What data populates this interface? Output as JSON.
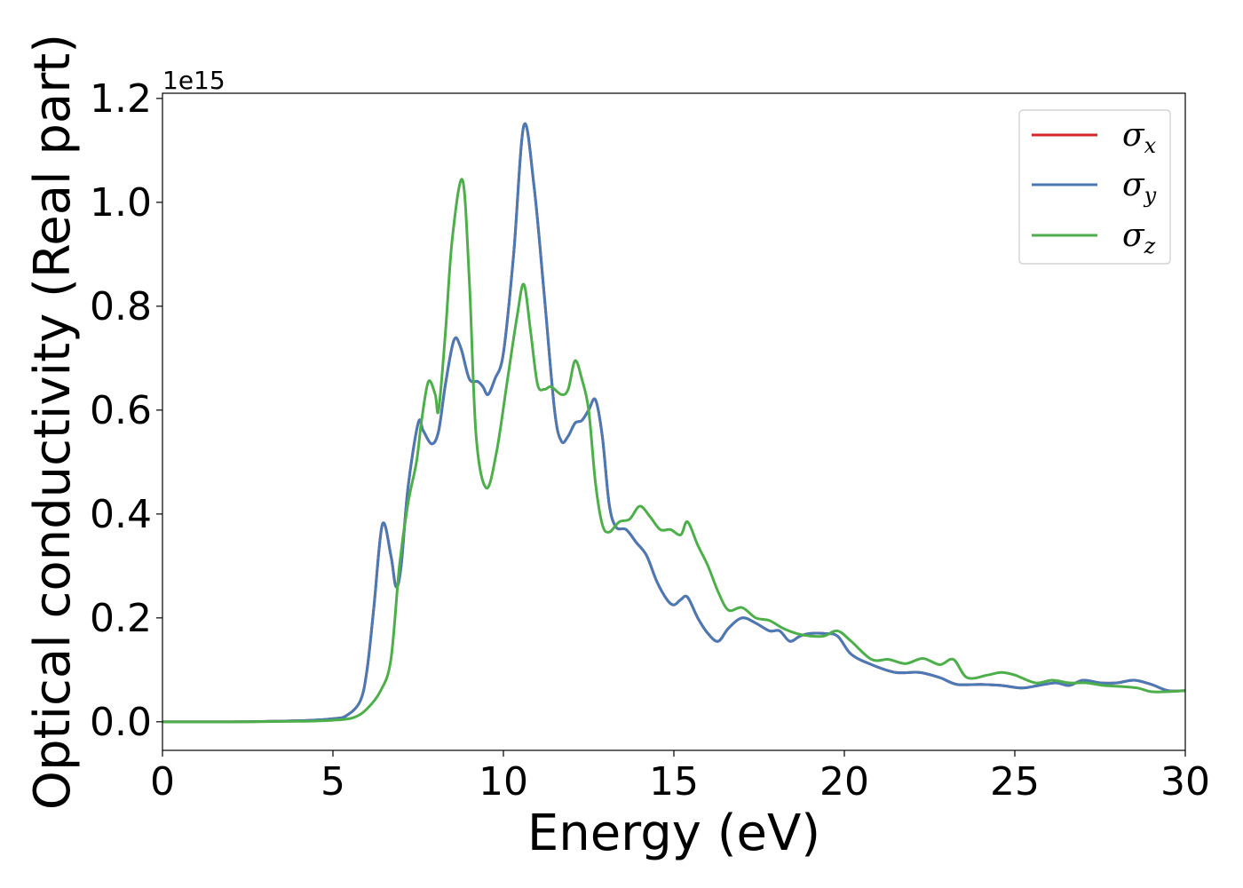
{
  "chart_data": {
    "type": "line",
    "xlabel": "Energy (eV)",
    "ylabel": "Optical conductivity (Real part)",
    "y_offset_label": "1e15",
    "xlim": [
      0,
      30
    ],
    "ylim": [
      -0.055,
      1.21
    ],
    "x_ticks": [
      0,
      5,
      10,
      15,
      20,
      25,
      30
    ],
    "y_ticks": [
      0.0,
      0.2,
      0.4,
      0.6,
      0.8,
      1.0,
      1.2
    ],
    "x_tick_labels": [
      "0",
      "5",
      "10",
      "15",
      "20",
      "25",
      "30"
    ],
    "y_tick_labels": [
      "0.0",
      "0.2",
      "0.4",
      "0.6",
      "0.8",
      "1.0",
      "1.2"
    ],
    "grid": false,
    "legend_position": "top-right",
    "series": [
      {
        "name": "σx",
        "symbol": "σ",
        "subscript": "x",
        "color": "#d62728",
        "x": [
          0,
          2,
          4,
          5,
          5.4,
          5.8,
          6.0,
          6.2,
          6.45,
          6.7,
          6.85,
          7.0,
          7.2,
          7.5,
          7.65,
          7.9,
          8.1,
          8.3,
          8.55,
          8.75,
          9.0,
          9.25,
          9.4,
          9.55,
          9.75,
          10.0,
          10.3,
          10.6,
          10.9,
          11.2,
          11.5,
          11.7,
          11.9,
          12.1,
          12.3,
          12.5,
          12.7,
          12.9,
          13.1,
          13.3,
          13.6,
          13.9,
          14.2,
          14.5,
          14.8,
          15.0,
          15.2,
          15.4,
          15.7,
          16.0,
          16.3,
          16.6,
          17.0,
          17.4,
          17.8,
          18.1,
          18.4,
          18.7,
          19.0,
          19.4,
          19.8,
          20.2,
          20.8,
          21.5,
          22.2,
          22.8,
          23.3,
          24.0,
          24.6,
          25.2,
          25.7,
          26.2,
          26.6,
          27.0,
          27.5,
          28.0,
          28.5,
          29.0,
          29.5,
          30.0
        ],
        "y": [
          0.0,
          0.0,
          0.002,
          0.006,
          0.012,
          0.04,
          0.1,
          0.22,
          0.38,
          0.32,
          0.26,
          0.3,
          0.45,
          0.575,
          0.56,
          0.535,
          0.56,
          0.65,
          0.735,
          0.72,
          0.66,
          0.655,
          0.645,
          0.63,
          0.66,
          0.71,
          0.9,
          1.148,
          1.03,
          0.82,
          0.6,
          0.54,
          0.55,
          0.575,
          0.58,
          0.6,
          0.62,
          0.55,
          0.42,
          0.375,
          0.37,
          0.345,
          0.32,
          0.27,
          0.235,
          0.225,
          0.235,
          0.24,
          0.2,
          0.17,
          0.155,
          0.18,
          0.2,
          0.19,
          0.175,
          0.175,
          0.155,
          0.165,
          0.17,
          0.17,
          0.165,
          0.13,
          0.11,
          0.095,
          0.095,
          0.085,
          0.072,
          0.072,
          0.07,
          0.065,
          0.07,
          0.075,
          0.07,
          0.08,
          0.075,
          0.075,
          0.08,
          0.072,
          0.06,
          0.06
        ]
      },
      {
        "name": "σy",
        "symbol": "σ",
        "subscript": "y",
        "color": "#4a7ab5",
        "x": [
          0,
          2,
          4,
          5,
          5.4,
          5.8,
          6.0,
          6.2,
          6.45,
          6.7,
          6.85,
          7.0,
          7.2,
          7.5,
          7.65,
          7.9,
          8.1,
          8.3,
          8.55,
          8.75,
          9.0,
          9.25,
          9.4,
          9.55,
          9.75,
          10.0,
          10.3,
          10.6,
          10.9,
          11.2,
          11.5,
          11.7,
          11.9,
          12.1,
          12.3,
          12.5,
          12.7,
          12.9,
          13.1,
          13.3,
          13.6,
          13.9,
          14.2,
          14.5,
          14.8,
          15.0,
          15.2,
          15.4,
          15.7,
          16.0,
          16.3,
          16.6,
          17.0,
          17.4,
          17.8,
          18.1,
          18.4,
          18.7,
          19.0,
          19.4,
          19.8,
          20.2,
          20.8,
          21.5,
          22.2,
          22.8,
          23.3,
          24.0,
          24.6,
          25.2,
          25.7,
          26.2,
          26.6,
          27.0,
          27.5,
          28.0,
          28.5,
          29.0,
          29.5,
          30.0
        ],
        "y": [
          0.0,
          0.0,
          0.002,
          0.006,
          0.012,
          0.04,
          0.1,
          0.22,
          0.38,
          0.32,
          0.26,
          0.3,
          0.45,
          0.575,
          0.56,
          0.535,
          0.56,
          0.65,
          0.735,
          0.72,
          0.66,
          0.655,
          0.645,
          0.63,
          0.66,
          0.71,
          0.9,
          1.148,
          1.03,
          0.82,
          0.6,
          0.54,
          0.55,
          0.575,
          0.58,
          0.6,
          0.62,
          0.55,
          0.42,
          0.375,
          0.37,
          0.345,
          0.32,
          0.27,
          0.235,
          0.225,
          0.235,
          0.24,
          0.2,
          0.17,
          0.155,
          0.18,
          0.2,
          0.19,
          0.175,
          0.175,
          0.155,
          0.165,
          0.17,
          0.17,
          0.165,
          0.13,
          0.11,
          0.095,
          0.095,
          0.085,
          0.072,
          0.072,
          0.07,
          0.065,
          0.07,
          0.075,
          0.07,
          0.08,
          0.075,
          0.075,
          0.08,
          0.072,
          0.06,
          0.06
        ]
      },
      {
        "name": "σz",
        "symbol": "σ",
        "subscript": "z",
        "color": "#4daf4a",
        "x": [
          0,
          2,
          4,
          5,
          5.6,
          6.0,
          6.4,
          6.7,
          6.95,
          7.2,
          7.45,
          7.6,
          7.8,
          8.0,
          8.1,
          8.3,
          8.5,
          8.8,
          9.0,
          9.2,
          9.5,
          9.8,
          10.1,
          10.4,
          10.6,
          10.8,
          11.0,
          11.2,
          11.4,
          11.7,
          11.9,
          12.1,
          12.3,
          12.5,
          12.7,
          12.9,
          13.1,
          13.4,
          13.7,
          14.0,
          14.3,
          14.6,
          14.9,
          15.2,
          15.4,
          15.7,
          16.0,
          16.3,
          16.6,
          17.0,
          17.4,
          17.8,
          18.2,
          18.6,
          19.0,
          19.4,
          19.8,
          20.2,
          20.8,
          21.3,
          21.8,
          22.3,
          22.8,
          23.2,
          23.6,
          24.2,
          24.6,
          25.0,
          25.6,
          26.1,
          26.6,
          27.1,
          27.6,
          28.1,
          28.6,
          29.0,
          29.5,
          30.0
        ],
        "y": [
          0.0,
          0.0,
          0.001,
          0.003,
          0.008,
          0.025,
          0.06,
          0.12,
          0.3,
          0.42,
          0.5,
          0.58,
          0.655,
          0.63,
          0.6,
          0.75,
          0.93,
          1.043,
          0.85,
          0.55,
          0.45,
          0.52,
          0.65,
          0.78,
          0.842,
          0.75,
          0.65,
          0.64,
          0.645,
          0.63,
          0.64,
          0.695,
          0.66,
          0.6,
          0.46,
          0.38,
          0.365,
          0.385,
          0.39,
          0.415,
          0.395,
          0.37,
          0.37,
          0.36,
          0.385,
          0.34,
          0.3,
          0.25,
          0.215,
          0.22,
          0.2,
          0.195,
          0.18,
          0.17,
          0.165,
          0.165,
          0.175,
          0.155,
          0.12,
          0.12,
          0.112,
          0.122,
          0.11,
          0.12,
          0.085,
          0.09,
          0.095,
          0.09,
          0.075,
          0.08,
          0.075,
          0.075,
          0.07,
          0.068,
          0.065,
          0.058,
          0.058,
          0.06
        ]
      }
    ]
  }
}
